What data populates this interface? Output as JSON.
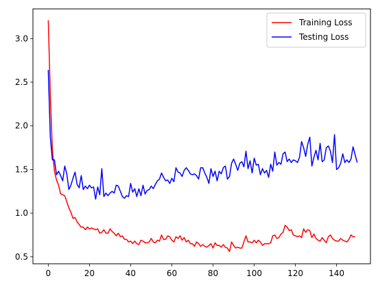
{
  "chart_data": {
    "type": "line",
    "title": "",
    "xlabel": "",
    "ylabel": "",
    "xlim": [
      -7.45,
      156.45
    ],
    "ylim": [
      0.42,
      3.34
    ],
    "xticks": [
      0,
      20,
      40,
      60,
      80,
      100,
      120,
      140
    ],
    "yticks": [
      0.5,
      1.0,
      1.5,
      2.0,
      2.5,
      3.0
    ],
    "ytick_labels": [
      "0.5",
      "1.0",
      "1.5",
      "2.0",
      "2.5",
      "3.0"
    ],
    "legend_position": "top-right",
    "series": [
      {
        "name": "Training Loss",
        "color": "#ff0000",
        "values": [
          3.21,
          2.35,
          1.72,
          1.48,
          1.38,
          1.32,
          1.22,
          1.21,
          1.2,
          1.13,
          1.06,
          1.01,
          0.94,
          0.95,
          0.9,
          0.87,
          0.84,
          0.84,
          0.81,
          0.84,
          0.82,
          0.83,
          0.82,
          0.81,
          0.82,
          0.77,
          0.78,
          0.81,
          0.77,
          0.77,
          0.82,
          0.79,
          0.77,
          0.74,
          0.77,
          0.73,
          0.74,
          0.7,
          0.7,
          0.67,
          0.68,
          0.65,
          0.68,
          0.65,
          0.64,
          0.69,
          0.68,
          0.66,
          0.66,
          0.67,
          0.71,
          0.67,
          0.66,
          0.69,
          0.68,
          0.75,
          0.7,
          0.7,
          0.74,
          0.73,
          0.69,
          0.67,
          0.73,
          0.71,
          0.74,
          0.69,
          0.72,
          0.67,
          0.69,
          0.65,
          0.65,
          0.62,
          0.67,
          0.65,
          0.62,
          0.64,
          0.62,
          0.61,
          0.63,
          0.65,
          0.6,
          0.66,
          0.63,
          0.63,
          0.61,
          0.64,
          0.61,
          0.6,
          0.56,
          0.67,
          0.63,
          0.6,
          0.61,
          0.6,
          0.6,
          0.67,
          0.74,
          0.67,
          0.67,
          0.66,
          0.69,
          0.66,
          0.69,
          0.67,
          0.63,
          0.65,
          0.65,
          0.65,
          0.66,
          0.74,
          0.75,
          0.71,
          0.72,
          0.76,
          0.78,
          0.86,
          0.84,
          0.8,
          0.81,
          0.75,
          0.74,
          0.73,
          0.74,
          0.72,
          0.82,
          0.78,
          0.81,
          0.8,
          0.72,
          0.76,
          0.71,
          0.69,
          0.68,
          0.72,
          0.69,
          0.66,
          0.73,
          0.75,
          0.71,
          0.69,
          0.68,
          0.68,
          0.71,
          0.69,
          0.68,
          0.67,
          0.7,
          0.75,
          0.73,
          0.73
        ]
      },
      {
        "name": "Testing Loss",
        "color": "#0000ff",
        "values": [
          2.64,
          1.87,
          1.61,
          1.61,
          1.44,
          1.48,
          1.43,
          1.37,
          1.54,
          1.45,
          1.27,
          1.32,
          1.4,
          1.47,
          1.33,
          1.29,
          1.43,
          1.27,
          1.31,
          1.28,
          1.32,
          1.29,
          1.3,
          1.16,
          1.3,
          1.21,
          1.51,
          1.19,
          1.23,
          1.2,
          1.23,
          1.25,
          1.23,
          1.32,
          1.31,
          1.25,
          1.19,
          1.17,
          1.2,
          1.19,
          1.34,
          1.24,
          1.28,
          1.19,
          1.28,
          1.2,
          1.32,
          1.22,
          1.26,
          1.27,
          1.31,
          1.28,
          1.33,
          1.37,
          1.39,
          1.46,
          1.41,
          1.37,
          1.38,
          1.34,
          1.4,
          1.36,
          1.52,
          1.47,
          1.46,
          1.42,
          1.49,
          1.52,
          1.49,
          1.45,
          1.44,
          1.45,
          1.43,
          1.39,
          1.52,
          1.52,
          1.46,
          1.41,
          1.34,
          1.51,
          1.42,
          1.48,
          1.37,
          1.48,
          1.45,
          1.52,
          1.54,
          1.39,
          1.42,
          1.57,
          1.62,
          1.56,
          1.49,
          1.57,
          1.59,
          1.53,
          1.71,
          1.51,
          1.6,
          1.46,
          1.63,
          1.55,
          1.56,
          1.44,
          1.51,
          1.46,
          1.49,
          1.41,
          1.56,
          1.48,
          1.7,
          1.55,
          1.58,
          1.56,
          1.68,
          1.7,
          1.59,
          1.62,
          1.58,
          1.61,
          1.6,
          1.58,
          1.64,
          1.82,
          1.75,
          1.65,
          1.79,
          1.87,
          1.54,
          1.64,
          1.72,
          1.61,
          1.8,
          1.59,
          1.61,
          1.75,
          1.77,
          1.71,
          1.58,
          1.9,
          1.5,
          1.52,
          1.57,
          1.68,
          1.58,
          1.61,
          1.58,
          1.62,
          1.76,
          1.67,
          1.58
        ]
      }
    ]
  }
}
